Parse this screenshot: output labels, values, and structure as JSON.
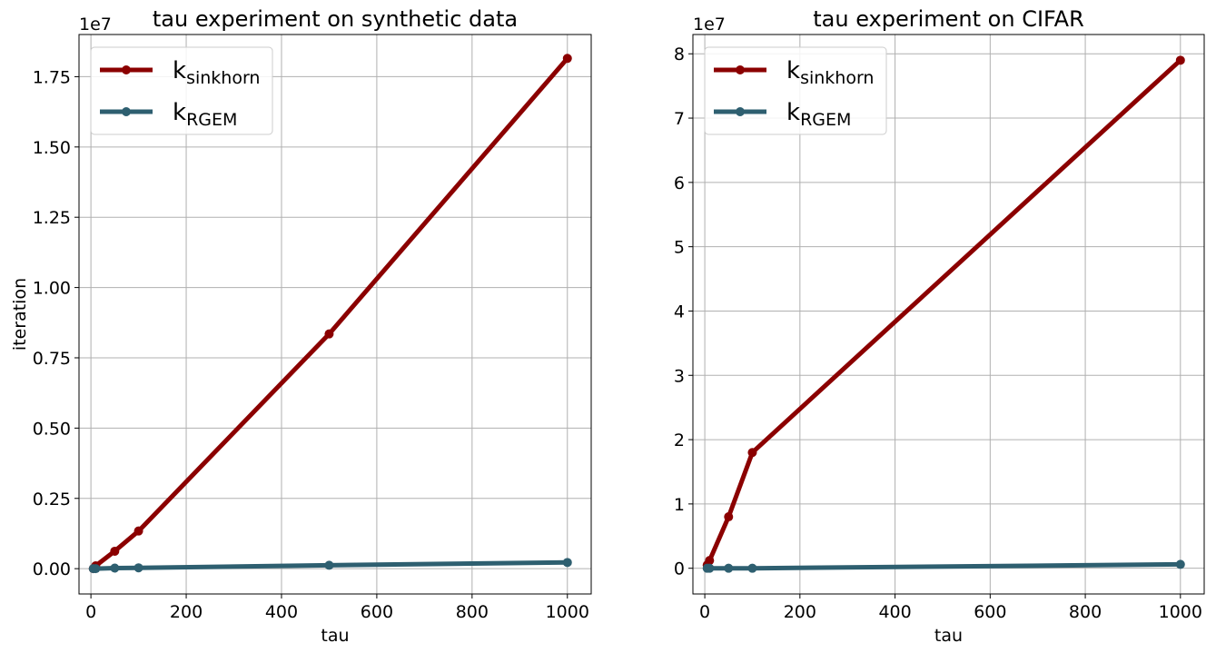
{
  "chart_data": [
    {
      "type": "line",
      "title": "tau experiment on synthetic data",
      "xlabel": "tau",
      "ylabel": "iteration",
      "offset_text": "1e7",
      "xlim": [
        -25,
        1050
      ],
      "ylim": [
        -0.09,
        1.9
      ],
      "xticks": [
        0,
        200,
        400,
        600,
        800,
        1000
      ],
      "xtick_labels": [
        "0",
        "200",
        "400",
        "600",
        "800",
        "1000"
      ],
      "yticks": [
        0,
        0.25,
        0.5,
        0.75,
        1.0,
        1.25,
        1.5,
        1.75
      ],
      "ytick_labels": [
        "0.00",
        "0.25",
        "0.50",
        "0.75",
        "1.00",
        "1.25",
        "1.50",
        "1.75"
      ],
      "grid": true,
      "legend_position": "top-left",
      "series": [
        {
          "name": "k",
          "subscript": "sinkhorn",
          "color": "#8b0000",
          "x": [
            5,
            10,
            50,
            100,
            500,
            1000
          ],
          "y": [
            0.0,
            0.01,
            0.062,
            0.134,
            0.835,
            1.815
          ]
        },
        {
          "name": "k",
          "subscript": "RGEM",
          "color": "#2e5f70",
          "x": [
            5,
            10,
            50,
            100,
            500,
            1000
          ],
          "y": [
            0.0,
            0.0,
            0.002,
            0.003,
            0.012,
            0.022
          ]
        }
      ]
    },
    {
      "type": "line",
      "title": "tau experiment on CIFAR",
      "xlabel": "tau",
      "ylabel": "",
      "offset_text": "1e7",
      "xlim": [
        -25,
        1050
      ],
      "ylim": [
        -0.4,
        8.3
      ],
      "xticks": [
        0,
        200,
        400,
        600,
        800,
        1000
      ],
      "xtick_labels": [
        "0",
        "200",
        "400",
        "600",
        "800",
        "1000"
      ],
      "yticks": [
        0,
        1,
        2,
        3,
        4,
        5,
        6,
        7,
        8
      ],
      "ytick_labels": [
        "0",
        "1",
        "2",
        "3",
        "4",
        "5",
        "6",
        "7",
        "8"
      ],
      "grid": true,
      "legend_position": "top-left",
      "series": [
        {
          "name": "k",
          "subscript": "sinkhorn",
          "color": "#8b0000",
          "x": [
            5,
            10,
            50,
            100,
            1000
          ],
          "y": [
            0.05,
            0.12,
            0.8,
            1.8,
            7.9
          ]
        },
        {
          "name": "k",
          "subscript": "RGEM",
          "color": "#2e5f70",
          "x": [
            5,
            10,
            50,
            100,
            1000
          ],
          "y": [
            0.0,
            0.0,
            0.0,
            0.0,
            0.06
          ]
        }
      ]
    }
  ]
}
